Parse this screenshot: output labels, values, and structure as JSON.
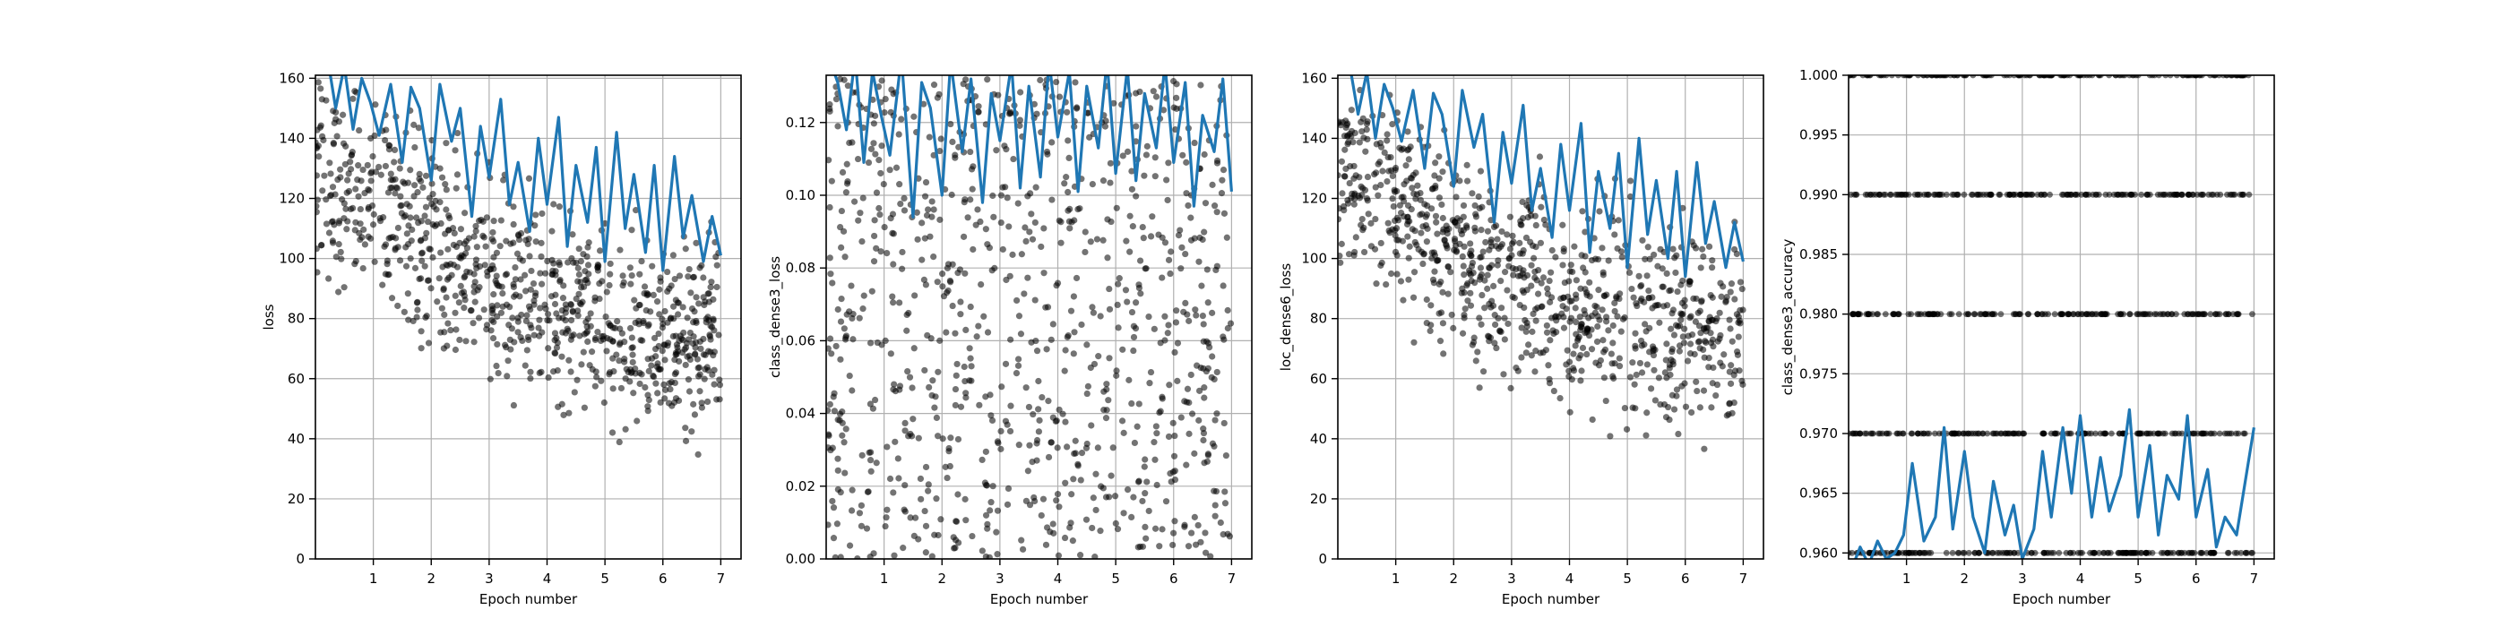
{
  "figure": {
    "background": "#ffffff"
  },
  "style": {
    "scatter_color": "#000000",
    "scatter_opacity": 0.55,
    "line_color": "#1f77b4",
    "grid_color": "#b0b0b0",
    "axis_color": "#000000"
  },
  "chart_data": [
    {
      "type": "line",
      "xlabel": "Epoch number",
      "ylabel": "loss",
      "xlim": [
        0,
        7.35
      ],
      "ylim": [
        0,
        161
      ],
      "xticks": [
        1,
        2,
        3,
        4,
        5,
        6,
        7
      ],
      "xtick_labels": [
        "1",
        "2",
        "3",
        "4",
        "5",
        "6",
        "7"
      ],
      "yticks": [
        0,
        20,
        40,
        60,
        80,
        100,
        120,
        140,
        160
      ],
      "ytick_labels": [
        "0",
        "20",
        "40",
        "60",
        "80",
        "100",
        "120",
        "140",
        "160"
      ],
      "grid": true,
      "series": [
        {
          "kind": "scatter",
          "trend": [
            [
              0,
              130
            ],
            [
              1,
              118
            ],
            [
              2,
              105
            ],
            [
              3,
              92
            ],
            [
              4,
              85
            ],
            [
              5,
              80
            ],
            [
              6,
              77
            ],
            [
              7,
              75
            ]
          ],
          "spread": 16,
          "count": 900
        },
        {
          "kind": "line",
          "x": [
            0.0,
            0.2,
            0.35,
            0.5,
            0.65,
            0.8,
            0.95,
            1.1,
            1.3,
            1.5,
            1.65,
            1.8,
            2.0,
            2.15,
            2.35,
            2.5,
            2.7,
            2.85,
            3.0,
            3.2,
            3.35,
            3.5,
            3.7,
            3.85,
            4.0,
            4.2,
            4.35,
            4.5,
            4.7,
            4.85,
            5.0,
            5.2,
            5.35,
            5.5,
            5.7,
            5.85,
            6.0,
            6.2,
            6.35,
            6.5,
            6.7,
            6.85,
            7.0
          ],
          "y": [
            175,
            168,
            150,
            164,
            143,
            160,
            152,
            141,
            158,
            132,
            157,
            150,
            126,
            158,
            139,
            150,
            114,
            144,
            127,
            153,
            118,
            132,
            109,
            140,
            118,
            147,
            104,
            131,
            112,
            137,
            99,
            142,
            110,
            128,
            102,
            131,
            96,
            134,
            107,
            121,
            99,
            114,
            101
          ]
        }
      ]
    },
    {
      "type": "line",
      "xlabel": "Epoch number",
      "ylabel": "class_dense3_loss",
      "xlim": [
        0,
        7.35
      ],
      "ylim": [
        0,
        0.133
      ],
      "xticks": [
        1,
        2,
        3,
        4,
        5,
        6,
        7
      ],
      "xtick_labels": [
        "1",
        "2",
        "3",
        "4",
        "5",
        "6",
        "7"
      ],
      "yticks": [
        0,
        0.02,
        0.04,
        0.06,
        0.08,
        0.1,
        0.12
      ],
      "ytick_labels": [
        "0.00",
        "0.02",
        "0.04",
        "0.06",
        "0.08",
        "0.10",
        "0.12"
      ],
      "grid": true,
      "series": [
        {
          "kind": "scatter",
          "trend": [
            [
              0,
              0.066
            ],
            [
              7,
              0.066
            ]
          ],
          "spread": 0.066,
          "count": 900
        },
        {
          "kind": "line",
          "x": [
            0.0,
            0.2,
            0.35,
            0.5,
            0.65,
            0.8,
            0.95,
            1.1,
            1.3,
            1.5,
            1.65,
            1.8,
            2.0,
            2.15,
            2.35,
            2.5,
            2.7,
            2.85,
            3.0,
            3.2,
            3.35,
            3.5,
            3.7,
            3.85,
            4.0,
            4.2,
            4.35,
            4.5,
            4.7,
            4.85,
            5.0,
            5.2,
            5.35,
            5.5,
            5.7,
            5.85,
            6.0,
            6.2,
            6.35,
            6.5,
            6.7,
            6.85,
            7.0
          ],
          "y": [
            0.14,
            0.131,
            0.118,
            0.138,
            0.109,
            0.134,
            0.122,
            0.111,
            0.138,
            0.094,
            0.131,
            0.124,
            0.1,
            0.137,
            0.112,
            0.132,
            0.098,
            0.128,
            0.115,
            0.136,
            0.102,
            0.13,
            0.105,
            0.137,
            0.116,
            0.134,
            0.101,
            0.13,
            0.113,
            0.137,
            0.106,
            0.135,
            0.104,
            0.128,
            0.113,
            0.136,
            0.109,
            0.131,
            0.097,
            0.122,
            0.112,
            0.132,
            0.101
          ]
        }
      ]
    },
    {
      "type": "line",
      "xlabel": "Epoch number",
      "ylabel": "loc_dense6_loss",
      "xlim": [
        0,
        7.35
      ],
      "ylim": [
        0,
        161
      ],
      "xticks": [
        1,
        2,
        3,
        4,
        5,
        6,
        7
      ],
      "xtick_labels": [
        "1",
        "2",
        "3",
        "4",
        "5",
        "6",
        "7"
      ],
      "yticks": [
        0,
        20,
        40,
        60,
        80,
        100,
        120,
        140,
        160
      ],
      "ytick_labels": [
        "0",
        "20",
        "40",
        "60",
        "80",
        "100",
        "120",
        "140",
        "160"
      ],
      "grid": true,
      "series": [
        {
          "kind": "scatter",
          "trend": [
            [
              0,
              130
            ],
            [
              1,
              118
            ],
            [
              2,
              105
            ],
            [
              3,
              92
            ],
            [
              4,
              85
            ],
            [
              5,
              80
            ],
            [
              6,
              77
            ],
            [
              7,
              75
            ]
          ],
          "spread": 16,
          "count": 900
        },
        {
          "kind": "line",
          "x": [
            0.0,
            0.2,
            0.35,
            0.5,
            0.65,
            0.8,
            0.95,
            1.1,
            1.3,
            1.5,
            1.65,
            1.8,
            2.0,
            2.15,
            2.35,
            2.5,
            2.7,
            2.85,
            3.0,
            3.2,
            3.35,
            3.5,
            3.7,
            3.85,
            4.0,
            4.2,
            4.35,
            4.5,
            4.7,
            4.85,
            5.0,
            5.2,
            5.35,
            5.5,
            5.7,
            5.85,
            6.0,
            6.2,
            6.35,
            6.5,
            6.7,
            6.85,
            7.0
          ],
          "y": [
            172,
            165,
            148,
            162,
            140,
            158,
            150,
            139,
            156,
            130,
            155,
            148,
            124,
            156,
            137,
            148,
            112,
            142,
            125,
            151,
            116,
            130,
            107,
            138,
            116,
            145,
            102,
            129,
            110,
            135,
            97,
            140,
            108,
            126,
            100,
            129,
            94,
            132,
            105,
            119,
            97,
            112,
            99
          ]
        }
      ]
    },
    {
      "type": "line",
      "xlabel": "Epoch number",
      "ylabel": "class_dense3_accuracy",
      "xlim": [
        0,
        7.35
      ],
      "ylim": [
        0.9595,
        1.0
      ],
      "xticks": [
        1,
        2,
        3,
        4,
        5,
        6,
        7
      ],
      "xtick_labels": [
        "1",
        "2",
        "3",
        "4",
        "5",
        "6",
        "7"
      ],
      "yticks": [
        0.96,
        0.965,
        0.97,
        0.975,
        0.98,
        0.985,
        0.99,
        0.995,
        1.0
      ],
      "ytick_labels": [
        "0.960",
        "0.965",
        "0.970",
        "0.975",
        "0.980",
        "0.985",
        "0.990",
        "0.995",
        "1.000"
      ],
      "grid": true,
      "series": [
        {
          "kind": "scatter_levels",
          "levels": [
            1.0,
            0.99,
            0.98,
            0.97,
            0.96
          ],
          "count_per_level": 170
        },
        {
          "kind": "line",
          "x": [
            0.0,
            0.2,
            0.35,
            0.5,
            0.65,
            0.8,
            0.95,
            1.1,
            1.3,
            1.5,
            1.65,
            1.8,
            2.0,
            2.15,
            2.35,
            2.5,
            2.7,
            2.85,
            3.0,
            3.2,
            3.35,
            3.5,
            3.7,
            3.85,
            4.0,
            4.2,
            4.35,
            4.5,
            4.7,
            4.85,
            5.0,
            5.2,
            5.35,
            5.5,
            5.7,
            5.85,
            6.0,
            6.2,
            6.35,
            6.5,
            6.7,
            6.85,
            7.0
          ],
          "y": [
            0.958,
            0.9605,
            0.959,
            0.961,
            0.9595,
            0.96,
            0.9615,
            0.9675,
            0.961,
            0.963,
            0.9705,
            0.962,
            0.9685,
            0.963,
            0.96,
            0.966,
            0.9615,
            0.964,
            0.9595,
            0.962,
            0.9685,
            0.963,
            0.9705,
            0.965,
            0.9715,
            0.963,
            0.968,
            0.9635,
            0.9665,
            0.972,
            0.963,
            0.969,
            0.9615,
            0.9665,
            0.9645,
            0.9715,
            0.963,
            0.967,
            0.9605,
            0.963,
            0.9615,
            0.966,
            0.9705
          ]
        }
      ]
    }
  ]
}
